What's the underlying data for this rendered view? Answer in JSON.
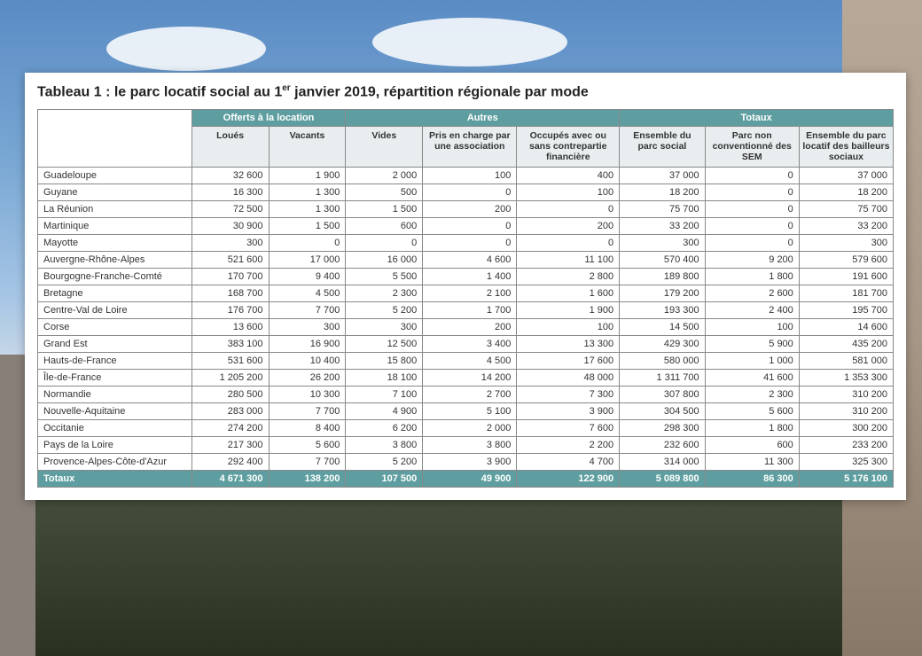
{
  "title_prefix": "Tableau 1 : le parc locatif social au 1",
  "title_sup": "er",
  "title_suffix": " janvier 2019, répartition régionale par mode",
  "group_headers": [
    "Offerts à la location",
    "Autres",
    "Totaux"
  ],
  "sub_headers": [
    "Loués",
    "Vacants",
    "Vides",
    "Pris en charge par une association",
    "Occupés avec ou sans contrepartie financière",
    "Ensemble du parc social",
    "Parc non conventionné des SEM",
    "Ensemble du parc locatif des bailleurs sociaux"
  ],
  "columns_count": 8,
  "group_spans": [
    2,
    3,
    3
  ],
  "header_bg": "#5f9ea0",
  "header_fg": "#ffffff",
  "subheader_bg": "#e8eef0",
  "border_color": "#888888",
  "font_size_body": 11,
  "font_size_title": 16,
  "col_widths_pct": [
    18,
    9,
    9,
    9,
    11,
    12,
    10,
    11,
    11
  ],
  "rows": [
    {
      "region": "Guadeloupe",
      "v": [
        "32 600",
        "1 900",
        "2 000",
        "100",
        "400",
        "37 000",
        "0",
        "37 000"
      ]
    },
    {
      "region": "Guyane",
      "v": [
        "16 300",
        "1 300",
        "500",
        "0",
        "100",
        "18 200",
        "0",
        "18 200"
      ]
    },
    {
      "region": "La Réunion",
      "v": [
        "72 500",
        "1 300",
        "1 500",
        "200",
        "0",
        "75 700",
        "0",
        "75 700"
      ]
    },
    {
      "region": "Martinique",
      "v": [
        "30 900",
        "1 500",
        "600",
        "0",
        "200",
        "33 200",
        "0",
        "33 200"
      ]
    },
    {
      "region": "Mayotte",
      "v": [
        "300",
        "0",
        "0",
        "0",
        "0",
        "300",
        "0",
        "300"
      ]
    },
    {
      "region": "Auvergne-Rhône-Alpes",
      "v": [
        "521 600",
        "17 000",
        "16 000",
        "4 600",
        "11 100",
        "570 400",
        "9 200",
        "579 600"
      ]
    },
    {
      "region": "Bourgogne-Franche-Comté",
      "v": [
        "170 700",
        "9 400",
        "5 500",
        "1 400",
        "2 800",
        "189 800",
        "1 800",
        "191 600"
      ]
    },
    {
      "region": "Bretagne",
      "v": [
        "168 700",
        "4 500",
        "2 300",
        "2 100",
        "1 600",
        "179 200",
        "2 600",
        "181 700"
      ]
    },
    {
      "region": "Centre-Val de Loire",
      "v": [
        "176 700",
        "7 700",
        "5 200",
        "1 700",
        "1 900",
        "193 300",
        "2 400",
        "195 700"
      ]
    },
    {
      "region": "Corse",
      "v": [
        "13 600",
        "300",
        "300",
        "200",
        "100",
        "14 500",
        "100",
        "14 600"
      ]
    },
    {
      "region": "Grand Est",
      "v": [
        "383 100",
        "16 900",
        "12 500",
        "3 400",
        "13 300",
        "429 300",
        "5 900",
        "435 200"
      ]
    },
    {
      "region": "Hauts-de-France",
      "v": [
        "531 600",
        "10 400",
        "15 800",
        "4 500",
        "17 600",
        "580 000",
        "1 000",
        "581 000"
      ]
    },
    {
      "region": "Île-de-France",
      "v": [
        "1 205 200",
        "26 200",
        "18 100",
        "14 200",
        "48 000",
        "1 311 700",
        "41 600",
        "1 353 300"
      ]
    },
    {
      "region": "Normandie",
      "v": [
        "280 500",
        "10 300",
        "7 100",
        "2 700",
        "7 300",
        "307 800",
        "2 300",
        "310 200"
      ]
    },
    {
      "region": "Nouvelle-Aquitaine",
      "v": [
        "283 000",
        "7 700",
        "4 900",
        "5 100",
        "3 900",
        "304 500",
        "5 600",
        "310 200"
      ]
    },
    {
      "region": "Occitanie",
      "v": [
        "274 200",
        "8 400",
        "6 200",
        "2 000",
        "7 600",
        "298 300",
        "1 800",
        "300 200"
      ]
    },
    {
      "region": "Pays de la Loire",
      "v": [
        "217 300",
        "5 600",
        "3 800",
        "3 800",
        "2 200",
        "232 600",
        "600",
        "233 200"
      ]
    },
    {
      "region": "Provence-Alpes-Côte-d'Azur",
      "v": [
        "292 400",
        "7 700",
        "5 200",
        "3 900",
        "4 700",
        "314 000",
        "11 300",
        "325 300"
      ]
    }
  ],
  "total_label": "Totaux",
  "total_values": [
    "4 671 300",
    "138 200",
    "107 500",
    "49 900",
    "122 900",
    "5 089 800",
    "86 300",
    "5 176 100"
  ]
}
